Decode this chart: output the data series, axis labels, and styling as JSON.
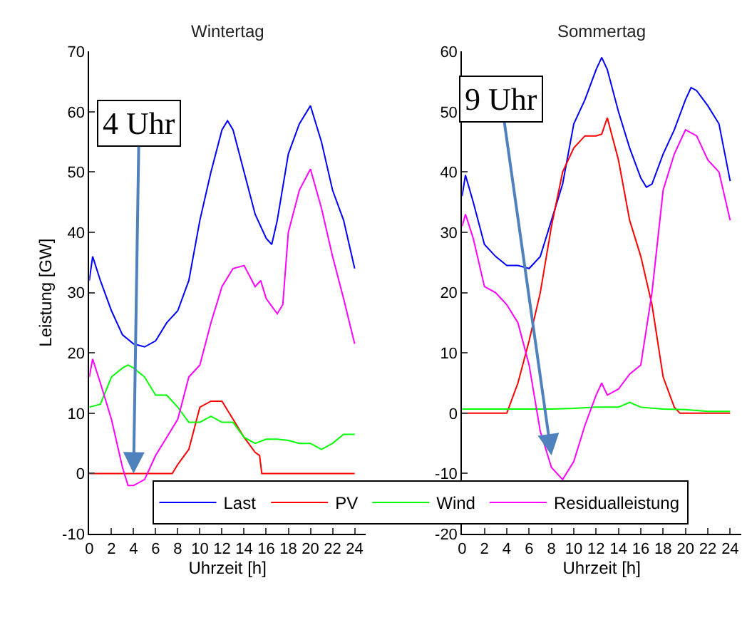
{
  "chart_data": [
    {
      "type": "line",
      "title": "Wintertag",
      "xlabel": "Uhrzeit [h]",
      "ylabel": "Leistung [GW]",
      "xlim": [
        0,
        25
      ],
      "xticks": [
        0,
        2,
        4,
        6,
        8,
        10,
        12,
        14,
        16,
        18,
        20,
        22,
        24
      ],
      "ylim": [
        -10,
        70
      ],
      "yticks": [
        -10,
        0,
        10,
        20,
        30,
        40,
        50,
        60,
        70
      ],
      "legend": "bottom",
      "marker": "none",
      "line_style": "solid",
      "series": [
        {
          "name": "Last",
          "color": "#0000ff",
          "x": [
            0,
            0.3,
            1,
            2,
            3,
            4,
            5,
            6,
            7,
            8,
            9,
            10,
            11,
            12,
            12.5,
            13,
            14,
            15,
            16,
            16.5,
            17,
            18,
            19,
            20,
            21,
            22,
            23,
            24
          ],
          "values": [
            32,
            36,
            32,
            27,
            23,
            21.5,
            21,
            22,
            25,
            27,
            32,
            42,
            50,
            57,
            58.5,
            57,
            50,
            43,
            39,
            38,
            42,
            53,
            58,
            61,
            55,
            47,
            42,
            34
          ]
        },
        {
          "name": "PV",
          "color": "#ff0000",
          "x": [
            0,
            7.5,
            8,
            9,
            10,
            11,
            12,
            13,
            14,
            15,
            15.4,
            15.6,
            24
          ],
          "values": [
            0,
            0,
            1.5,
            4,
            11,
            12,
            12,
            9,
            6,
            3.5,
            3,
            0,
            0
          ]
        },
        {
          "name": "Wind",
          "color": "#00ff00",
          "x": [
            0,
            1,
            2,
            3,
            3.5,
            4,
            5,
            6,
            7,
            8,
            9,
            10,
            11,
            12,
            13,
            14,
            15,
            16,
            17,
            18,
            19,
            20,
            21,
            22,
            23,
            24
          ],
          "values": [
            11,
            11.5,
            16,
            17.5,
            18,
            17.5,
            16,
            13,
            13,
            11,
            8.5,
            8.5,
            9.5,
            8.5,
            8.5,
            6,
            5,
            5.7,
            5.7,
            5.5,
            5,
            5,
            4,
            5,
            6.5,
            6.5
          ]
        },
        {
          "name": "Residualleistung",
          "color": "#ff00ff",
          "x": [
            0,
            0.3,
            1,
            2,
            3,
            3.5,
            4,
            5,
            6,
            7,
            8,
            9,
            10,
            11,
            12,
            13,
            14,
            15,
            15.5,
            16,
            17,
            17.5,
            18,
            19,
            20,
            21,
            22,
            23,
            24
          ],
          "values": [
            16,
            19,
            15,
            9,
            1,
            -2,
            -2,
            -1,
            3,
            6,
            9,
            16,
            18,
            25,
            31,
            34,
            34.5,
            31,
            32,
            29,
            26.5,
            28,
            40,
            47,
            50.5,
            44,
            36,
            29,
            21.5
          ]
        }
      ],
      "annotations": [
        {
          "text": "4 Uhr",
          "x": 4,
          "y": 0
        }
      ]
    },
    {
      "type": "line",
      "title": "Sommertag",
      "xlabel": "Uhrzeit [h]",
      "xlim": [
        0,
        25
      ],
      "xticks": [
        0,
        2,
        4,
        6,
        8,
        10,
        12,
        14,
        16,
        18,
        20,
        22,
        24
      ],
      "ylim": [
        -20,
        60
      ],
      "yticks": [
        -20,
        -10,
        0,
        10,
        20,
        30,
        40,
        50,
        60
      ],
      "legend": "bottom",
      "marker": "none",
      "line_style": "solid",
      "series": [
        {
          "name": "Last",
          "color": "#0000ff",
          "x": [
            0,
            0.3,
            1,
            2,
            3,
            4,
            5,
            6,
            7,
            8,
            9,
            10,
            11,
            12,
            12.5,
            13,
            14,
            15,
            16,
            16.5,
            17,
            18,
            19,
            20,
            20.5,
            21,
            22,
            23,
            24
          ],
          "values": [
            36,
            39.5,
            35,
            28,
            26,
            24.5,
            24.5,
            24,
            26,
            32,
            38,
            48,
            52,
            57,
            59,
            57,
            50,
            44,
            39,
            37.5,
            38,
            43,
            47,
            52,
            54,
            53.5,
            51,
            48,
            38.5
          ]
        },
        {
          "name": "PV",
          "color": "#ff0000",
          "x": [
            0,
            4,
            5,
            6,
            7,
            8,
            9,
            10,
            11,
            12,
            12.5,
            13,
            14,
            15,
            16,
            17,
            18,
            19,
            19.5,
            24
          ],
          "values": [
            0,
            0,
            5,
            12,
            20,
            31,
            40,
            44,
            46,
            46,
            46.3,
            49,
            42,
            32,
            26,
            18,
            6,
            1,
            0,
            0
          ]
        },
        {
          "name": "Wind",
          "color": "#00ff00",
          "x": [
            0,
            2,
            4,
            6,
            8,
            10,
            12,
            14,
            15,
            16,
            18,
            20,
            22,
            24
          ],
          "values": [
            0.7,
            0.7,
            0.7,
            0.7,
            0.7,
            0.8,
            1,
            1,
            1.8,
            1,
            0.7,
            0.6,
            0.3,
            0.3
          ]
        },
        {
          "name": "Residualleistung",
          "color": "#ff00ff",
          "x": [
            0,
            0.3,
            1,
            2,
            3,
            4,
            5,
            6,
            7,
            8,
            9,
            10,
            11,
            12,
            12.5,
            13,
            14,
            15,
            16,
            17,
            18,
            19,
            20,
            21,
            22,
            23,
            24
          ],
          "values": [
            31,
            33,
            29,
            21,
            20,
            18,
            15,
            8,
            -3,
            -9,
            -11,
            -8,
            -2,
            3,
            5,
            3,
            4,
            6.5,
            8,
            20,
            37,
            43,
            47,
            46,
            42,
            40,
            32
          ]
        }
      ],
      "annotations": [
        {
          "text": "9 Uhr",
          "x": 8,
          "y": -7
        }
      ]
    }
  ]
}
